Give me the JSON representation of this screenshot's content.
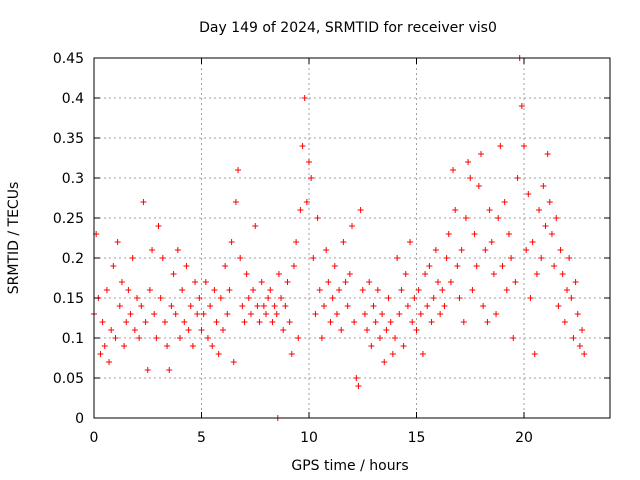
{
  "chart_data": {
    "type": "scatter",
    "title": "Day 149 of 2024, SRMTID for receiver vis0",
    "xlabel": "GPS time / hours",
    "ylabel": "SRMTID / TECUs",
    "xlim": [
      0,
      24
    ],
    "ylim": [
      0,
      0.45
    ],
    "xticks": [
      0,
      5,
      10,
      15,
      20
    ],
    "yticks": [
      0,
      0.05,
      0.1,
      0.15,
      0.2,
      0.25,
      0.3,
      0.35,
      0.4,
      0.45
    ],
    "xtick_labels": [
      "0",
      "5",
      "10",
      "15",
      "20"
    ],
    "ytick_labels": [
      "0",
      "0.05",
      "0.1",
      "0.15",
      "0.2",
      "0.25",
      "0.3",
      "0.35",
      "0.4",
      "0.45"
    ],
    "grid": true,
    "marker": "+",
    "color": "#ff0000",
    "series": [
      {
        "name": "SRMTID",
        "x": [
          0.0,
          0.1,
          0.2,
          0.3,
          0.4,
          0.5,
          0.6,
          0.7,
          0.8,
          0.9,
          1.0,
          1.1,
          1.2,
          1.3,
          1.4,
          1.5,
          1.6,
          1.7,
          1.8,
          1.9,
          2.0,
          2.1,
          2.2,
          2.3,
          2.4,
          2.5,
          2.6,
          2.7,
          2.8,
          2.9,
          3.0,
          3.1,
          3.2,
          3.3,
          3.4,
          3.5,
          3.6,
          3.7,
          3.8,
          3.9,
          4.0,
          4.1,
          4.2,
          4.3,
          4.4,
          4.5,
          4.6,
          4.7,
          4.8,
          4.9,
          5.0,
          5.1,
          5.2,
          5.3,
          5.4,
          5.5,
          5.6,
          5.7,
          5.8,
          5.9,
          6.0,
          6.1,
          6.2,
          6.3,
          6.4,
          6.5,
          6.6,
          6.7,
          6.8,
          6.9,
          7.0,
          7.1,
          7.2,
          7.3,
          7.4,
          7.5,
          7.6,
          7.7,
          7.8,
          7.9,
          8.0,
          8.1,
          8.2,
          8.3,
          8.4,
          8.5,
          8.6,
          8.7,
          8.8,
          8.9,
          9.0,
          9.1,
          9.2,
          9.3,
          9.4,
          9.5,
          9.6,
          9.7,
          9.8,
          9.9,
          10.0,
          10.1,
          10.2,
          10.3,
          10.4,
          10.5,
          10.6,
          10.7,
          10.8,
          10.9,
          11.0,
          11.1,
          11.2,
          11.3,
          11.4,
          11.5,
          11.6,
          11.7,
          11.8,
          11.9,
          12.0,
          12.1,
          12.2,
          12.3,
          12.4,
          12.5,
          12.6,
          12.7,
          12.8,
          12.9,
          13.0,
          13.1,
          13.2,
          13.3,
          13.4,
          13.5,
          13.6,
          13.7,
          13.8,
          13.9,
          14.0,
          14.1,
          14.2,
          14.3,
          14.4,
          14.5,
          14.6,
          14.7,
          14.8,
          14.9,
          15.0,
          15.1,
          15.2,
          15.3,
          15.4,
          15.5,
          15.6,
          15.7,
          15.8,
          15.9,
          16.0,
          16.1,
          16.2,
          16.3,
          16.4,
          16.5,
          16.6,
          16.7,
          16.8,
          16.9,
          17.0,
          17.1,
          17.2,
          17.3,
          17.4,
          17.5,
          17.6,
          17.7,
          17.8,
          17.9,
          18.0,
          18.1,
          18.2,
          18.3,
          18.4,
          18.5,
          18.6,
          18.7,
          18.8,
          18.9,
          19.0,
          19.1,
          19.2,
          19.3,
          19.4,
          19.5,
          19.6,
          19.7,
          19.8,
          19.9,
          20.0,
          20.1,
          20.2,
          20.3,
          20.4,
          20.5,
          20.6,
          20.7,
          20.8,
          20.9,
          21.0,
          21.1,
          21.2,
          21.3,
          21.4,
          21.5,
          21.6,
          21.7,
          21.8,
          21.9,
          22.0,
          22.1,
          22.2,
          22.3,
          22.4,
          22.5,
          22.6,
          22.7,
          22.8,
          8.55
        ],
        "y": [
          0.13,
          0.23,
          0.15,
          0.08,
          0.12,
          0.09,
          0.16,
          0.07,
          0.11,
          0.19,
          0.1,
          0.22,
          0.14,
          0.17,
          0.09,
          0.12,
          0.16,
          0.13,
          0.2,
          0.11,
          0.15,
          0.1,
          0.14,
          0.27,
          0.12,
          0.06,
          0.16,
          0.21,
          0.13,
          0.1,
          0.24,
          0.15,
          0.2,
          0.12,
          0.09,
          0.06,
          0.14,
          0.18,
          0.13,
          0.21,
          0.1,
          0.16,
          0.12,
          0.19,
          0.11,
          0.14,
          0.09,
          0.17,
          0.13,
          0.15,
          0.11,
          0.13,
          0.17,
          0.1,
          0.14,
          0.09,
          0.16,
          0.12,
          0.08,
          0.15,
          0.11,
          0.19,
          0.13,
          0.16,
          0.22,
          0.07,
          0.27,
          0.31,
          0.2,
          0.14,
          0.12,
          0.18,
          0.15,
          0.13,
          0.16,
          0.24,
          0.14,
          0.12,
          0.17,
          0.14,
          0.13,
          0.15,
          0.16,
          0.12,
          0.14,
          0.13,
          0.18,
          0.15,
          0.11,
          0.14,
          0.17,
          0.12,
          0.08,
          0.19,
          0.22,
          0.1,
          0.26,
          0.34,
          0.4,
          0.27,
          0.32,
          0.3,
          0.2,
          0.13,
          0.25,
          0.16,
          0.1,
          0.14,
          0.21,
          0.17,
          0.12,
          0.15,
          0.19,
          0.13,
          0.16,
          0.11,
          0.22,
          0.17,
          0.14,
          0.18,
          0.24,
          0.12,
          0.05,
          0.04,
          0.26,
          0.16,
          0.13,
          0.11,
          0.17,
          0.09,
          0.14,
          0.12,
          0.16,
          0.1,
          0.13,
          0.07,
          0.11,
          0.15,
          0.12,
          0.08,
          0.1,
          0.2,
          0.13,
          0.16,
          0.09,
          0.18,
          0.14,
          0.22,
          0.12,
          0.15,
          0.11,
          0.16,
          0.13,
          0.08,
          0.18,
          0.14,
          0.19,
          0.12,
          0.15,
          0.21,
          0.17,
          0.13,
          0.16,
          0.14,
          0.2,
          0.23,
          0.17,
          0.31,
          0.26,
          0.19,
          0.15,
          0.21,
          0.12,
          0.25,
          0.32,
          0.3,
          0.16,
          0.23,
          0.19,
          0.29,
          0.33,
          0.14,
          0.21,
          0.12,
          0.26,
          0.22,
          0.18,
          0.13,
          0.25,
          0.34,
          0.19,
          0.27,
          0.16,
          0.23,
          0.2,
          0.1,
          0.17,
          0.3,
          0.45,
          0.39,
          0.34,
          0.21,
          0.28,
          0.15,
          0.22,
          0.08,
          0.18,
          0.26,
          0.2,
          0.29,
          0.24,
          0.33,
          0.27,
          0.23,
          0.19,
          0.25,
          0.14,
          0.21,
          0.18,
          0.12,
          0.16,
          0.2,
          0.15,
          0.1,
          0.17,
          0.13,
          0.09,
          0.11,
          0.08,
          0.0
        ]
      }
    ]
  }
}
